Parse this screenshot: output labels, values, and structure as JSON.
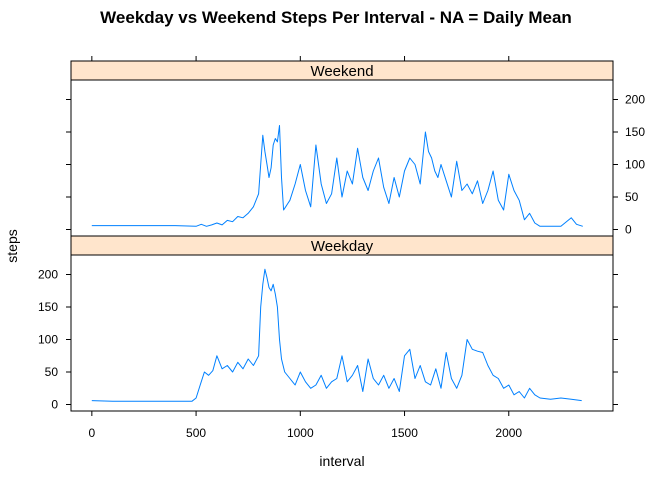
{
  "chart_data": {
    "type": "line",
    "title": "Weekday vs Weekend Steps Per Interval - NA = Daily Mean",
    "xlabel": "interval",
    "ylabel": "steps",
    "xlim": [
      -100,
      2500
    ],
    "ylim": [
      -10,
      230
    ],
    "x_ticks": [
      0,
      500,
      1000,
      1500,
      2000
    ],
    "y_ticks": [
      0,
      50,
      100,
      150,
      200
    ],
    "grid": false,
    "line_color": "#0080ff",
    "strip_color": "#ffe5cc",
    "panels": [
      {
        "name": "Weekend",
        "x": [
          0,
          200,
          400,
          500,
          525,
          550,
          575,
          600,
          625,
          650,
          675,
          700,
          725,
          750,
          775,
          800,
          810,
          820,
          830,
          840,
          850,
          860,
          870,
          880,
          890,
          900,
          910,
          920,
          930,
          940,
          950,
          975,
          1000,
          1025,
          1050,
          1075,
          1100,
          1125,
          1150,
          1175,
          1200,
          1225,
          1250,
          1275,
          1300,
          1325,
          1350,
          1375,
          1400,
          1425,
          1450,
          1475,
          1500,
          1525,
          1550,
          1575,
          1600,
          1615,
          1630,
          1645,
          1660,
          1675,
          1700,
          1725,
          1750,
          1775,
          1800,
          1825,
          1850,
          1875,
          1900,
          1925,
          1950,
          1975,
          2000,
          2025,
          2050,
          2075,
          2100,
          2125,
          2150,
          2200,
          2250,
          2300,
          2325,
          2355
        ],
        "y": [
          6,
          6,
          6,
          5,
          8,
          5,
          7,
          10,
          7,
          14,
          12,
          20,
          18,
          25,
          35,
          55,
          100,
          145,
          120,
          100,
          80,
          95,
          130,
          140,
          135,
          160,
          80,
          30,
          35,
          40,
          45,
          70,
          100,
          60,
          35,
          130,
          70,
          40,
          55,
          110,
          50,
          90,
          70,
          125,
          80,
          60,
          90,
          110,
          65,
          40,
          80,
          50,
          90,
          110,
          100,
          70,
          150,
          120,
          110,
          90,
          80,
          100,
          75,
          50,
          105,
          60,
          70,
          55,
          75,
          40,
          60,
          90,
          45,
          30,
          85,
          60,
          45,
          15,
          25,
          10,
          5,
          5,
          5,
          18,
          8,
          5
        ]
      },
      {
        "name": "Weekday",
        "x": [
          0,
          100,
          200,
          300,
          400,
          480,
          500,
          520,
          540,
          560,
          580,
          600,
          625,
          650,
          675,
          700,
          725,
          750,
          775,
          800,
          810,
          820,
          830,
          840,
          850,
          860,
          870,
          880,
          890,
          900,
          910,
          925,
          950,
          975,
          1000,
          1025,
          1050,
          1075,
          1100,
          1125,
          1150,
          1175,
          1200,
          1225,
          1250,
          1275,
          1300,
          1325,
          1350,
          1375,
          1400,
          1425,
          1450,
          1475,
          1500,
          1525,
          1550,
          1575,
          1600,
          1625,
          1650,
          1675,
          1700,
          1725,
          1750,
          1775,
          1800,
          1825,
          1850,
          1875,
          1900,
          1925,
          1950,
          1975,
          2000,
          2025,
          2050,
          2075,
          2100,
          2125,
          2150,
          2200,
          2250,
          2300,
          2350
        ],
        "y": [
          6,
          5,
          5,
          5,
          5,
          5,
          10,
          30,
          50,
          45,
          52,
          75,
          55,
          60,
          50,
          65,
          55,
          70,
          60,
          75,
          150,
          185,
          208,
          195,
          180,
          175,
          185,
          170,
          150,
          100,
          70,
          50,
          40,
          30,
          50,
          35,
          25,
          30,
          45,
          25,
          35,
          40,
          75,
          35,
          45,
          60,
          20,
          70,
          40,
          30,
          45,
          25,
          40,
          20,
          75,
          85,
          40,
          60,
          35,
          30,
          55,
          25,
          80,
          40,
          25,
          45,
          100,
          85,
          82,
          80,
          60,
          45,
          40,
          25,
          30,
          15,
          20,
          10,
          25,
          15,
          10,
          8,
          10,
          8,
          6
        ]
      }
    ]
  }
}
